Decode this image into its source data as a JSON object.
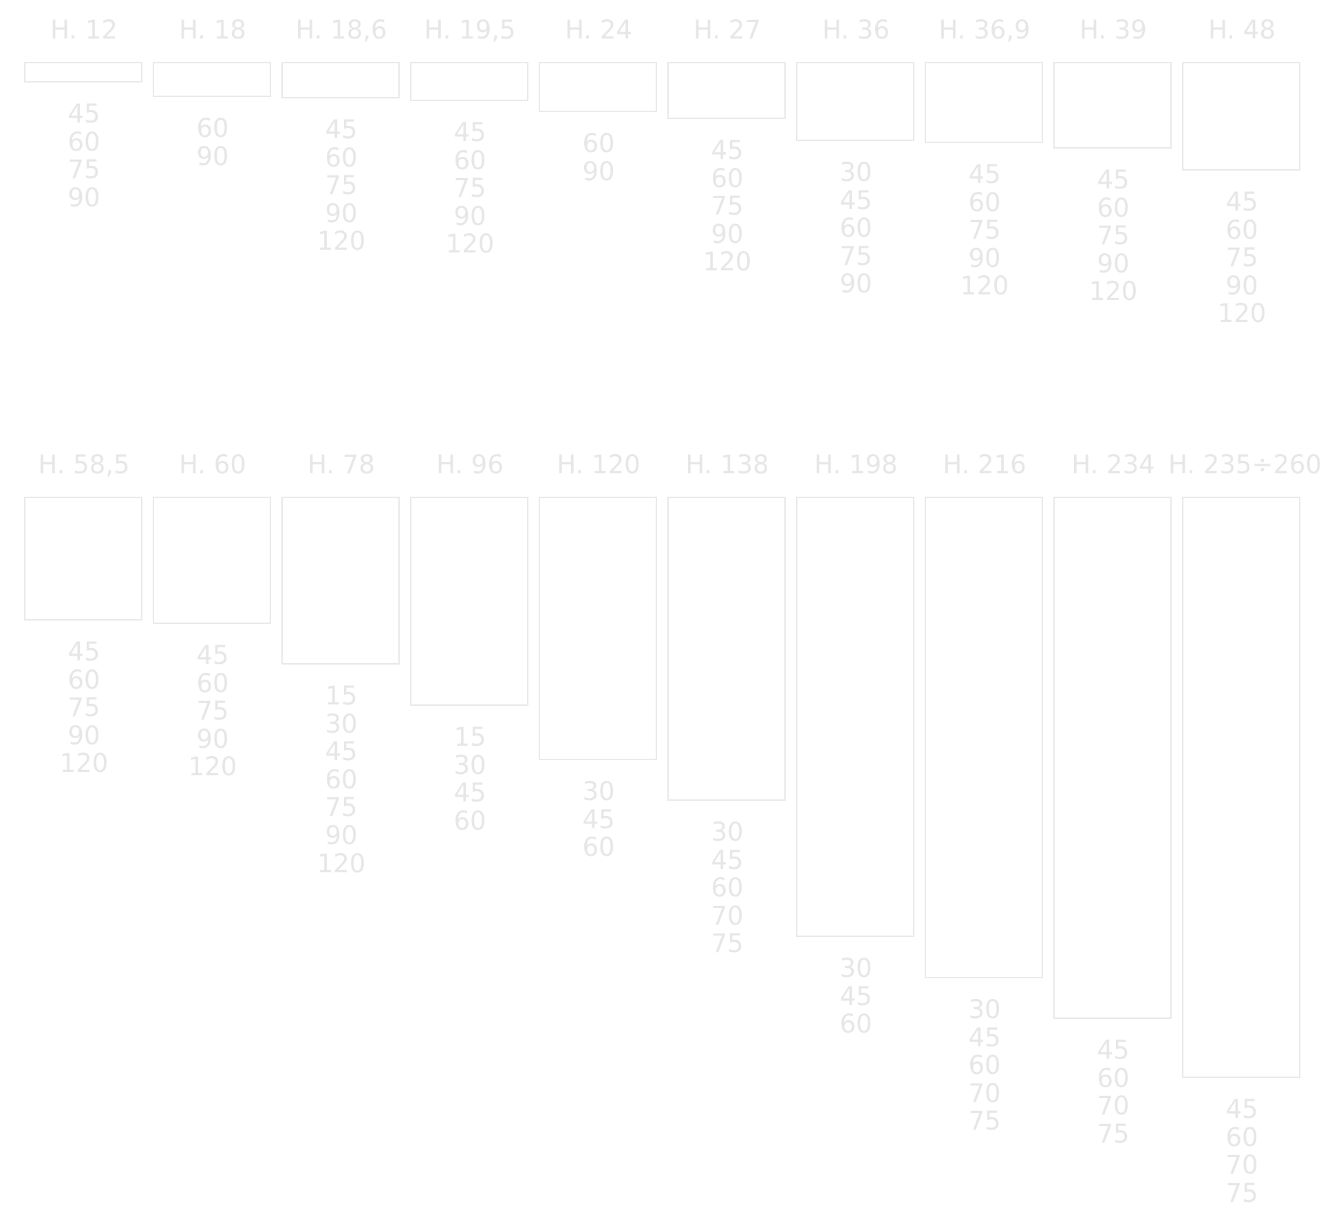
{
  "colors": {
    "background": "#ffffff",
    "text": "#e6e6e6",
    "outline": "#e8e8e8"
  },
  "rows": [
    {
      "items": [
        {
          "label": "H. 12",
          "height": 12,
          "values": [
            "45",
            "60",
            "75",
            "90"
          ]
        },
        {
          "label": "H. 18",
          "height": 18,
          "values": [
            "60",
            "90"
          ]
        },
        {
          "label": "H. 18,6",
          "height": 18.6,
          "values": [
            "45",
            "60",
            "75",
            "90",
            "120"
          ]
        },
        {
          "label": "H. 19,5",
          "height": 19.5,
          "values": [
            "45",
            "60",
            "75",
            "90",
            "120"
          ]
        },
        {
          "label": "H. 24",
          "height": 24,
          "values": [
            "60",
            "90"
          ]
        },
        {
          "label": "H. 27",
          "height": 27,
          "values": [
            "45",
            "60",
            "75",
            "90",
            "120"
          ]
        },
        {
          "label": "H. 36",
          "height": 36,
          "values": [
            "30",
            "45",
            "60",
            "75",
            "90"
          ]
        },
        {
          "label": "H. 36,9",
          "height": 36.9,
          "values": [
            "45",
            "60",
            "75",
            "90",
            "120"
          ]
        },
        {
          "label": "H. 39",
          "height": 39,
          "values": [
            "45",
            "60",
            "75",
            "90",
            "120"
          ]
        },
        {
          "label": "H. 48",
          "height": 48,
          "values": [
            "45",
            "60",
            "75",
            "90",
            "120"
          ]
        }
      ]
    },
    {
      "items": [
        {
          "label": "H. 58,5",
          "height": 58.5,
          "values": [
            "45",
            "60",
            "75",
            "90",
            "120"
          ]
        },
        {
          "label": "H. 60",
          "height": 60,
          "values": [
            "45",
            "60",
            "75",
            "90",
            "120"
          ]
        },
        {
          "label": "H. 78",
          "height": 78,
          "values": [
            "15",
            "30",
            "45",
            "60",
            "75",
            "90",
            "120"
          ]
        },
        {
          "label": "H. 96",
          "height": 96,
          "values": [
            "15",
            "30",
            "45",
            "60"
          ]
        },
        {
          "label": "H. 120",
          "height": 120,
          "values": [
            "30",
            "45",
            "60"
          ]
        },
        {
          "label": "H. 138",
          "height": 138,
          "values": [
            "30",
            "45",
            "60",
            "70",
            "75"
          ]
        },
        {
          "label": "H. 198",
          "height": 198,
          "values": [
            "30",
            "45",
            "60"
          ]
        },
        {
          "label": "H. 216",
          "height": 216,
          "values": [
            "30",
            "45",
            "60",
            "70",
            "75"
          ]
        },
        {
          "label": "H. 234",
          "height": 234,
          "values": [
            "45",
            "60",
            "70",
            "75"
          ]
        },
        {
          "label": "H. 235÷260",
          "height": 260,
          "values": [
            "45",
            "60",
            "70",
            "75"
          ]
        }
      ]
    }
  ]
}
